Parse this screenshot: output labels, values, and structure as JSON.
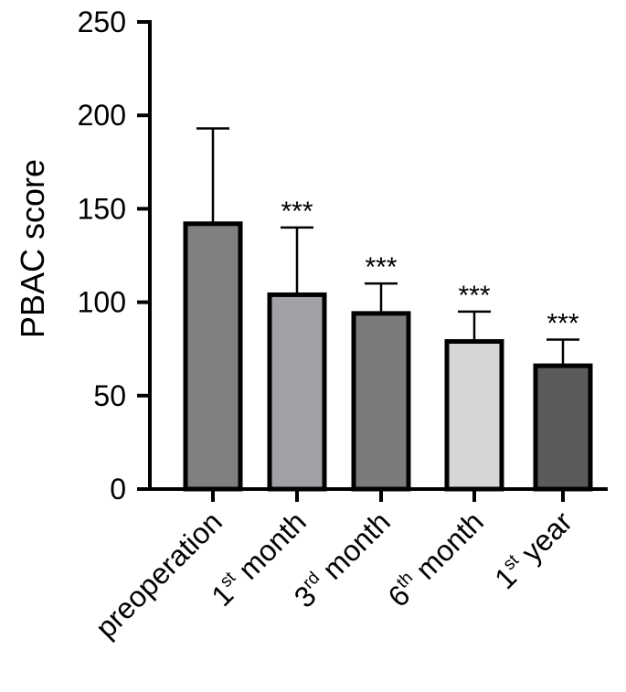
{
  "chart_data": {
    "type": "bar",
    "ylabel": "PBAC score",
    "ylim": [
      0,
      250
    ],
    "yticks": [
      0,
      50,
      100,
      150,
      200,
      250
    ],
    "categories": [
      {
        "label": "preoperation",
        "base": "preoperation",
        "sup": "",
        "rest": ""
      },
      {
        "label": "1st month",
        "base": "1",
        "sup": "st",
        "rest": " month"
      },
      {
        "label": "3rd month",
        "base": "3",
        "sup": "rd",
        "rest": " month"
      },
      {
        "label": "6th month",
        "base": "6",
        "sup": "th",
        "rest": " month"
      },
      {
        "label": "1st year",
        "base": "1",
        "sup": "st",
        "rest": " year"
      }
    ],
    "values": [
      142,
      104,
      94,
      79,
      66
    ],
    "error_upper": [
      193,
      140,
      110,
      95,
      80
    ],
    "significance": [
      "",
      "***",
      "***",
      "***",
      "***"
    ],
    "bar_colors": [
      "#808080",
      "#a2a2a6",
      "#7b7b7b",
      "#d6d6d6",
      "#5b5b5b"
    ],
    "grid": false,
    "legend": "none"
  }
}
